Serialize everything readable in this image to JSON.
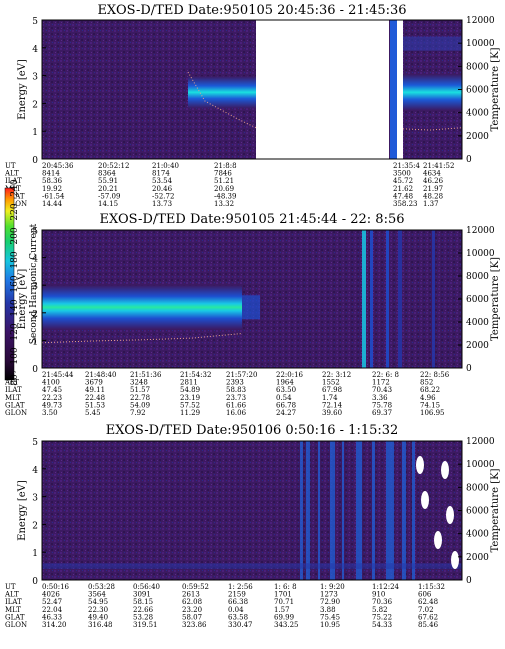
{
  "colorbar": {
    "label": "Second Harmonic Current",
    "ticks": [
      "80",
      "100",
      "120",
      "140",
      "160",
      "180",
      "200",
      "220",
      "240"
    ]
  },
  "chart_data": [
    {
      "type": "heatmap",
      "title": "EXOS-D/TED   Date:950105  20:45:36 - 21:45:36",
      "ylabel": "Energy [eV]",
      "y2label": "Temperature [K]",
      "ylim": [
        0,
        5
      ],
      "y2lim": [
        0,
        12000
      ],
      "yticks": [
        "0",
        "1",
        "2",
        "3",
        "4",
        "5"
      ],
      "y2ticks": [
        "0",
        "2000",
        "4000",
        "6000",
        "8000",
        "10000",
        "12000"
      ],
      "data_gaps": [
        "21:8:8 - 21:35:4"
      ],
      "band_energy_eV": 2.4,
      "temperature_trace_K": [
        7500,
        5000,
        4200,
        3400,
        2700
      ],
      "table": {
        "row_labels": [
          "UT",
          "ALT",
          "ILAT",
          "MLT",
          "GLAT",
          "GLON"
        ],
        "columns": [
          [
            "20:45:36",
            "8414",
            "58.36",
            "19.92",
            "-61.54",
            "14.44"
          ],
          [
            "20:52:12",
            "8364",
            "55.91",
            "20.21",
            "-57.09",
            "14.15"
          ],
          [
            "21:0:40",
            "8174",
            "53.54",
            "20.46",
            "-52.72",
            "13.73"
          ],
          [
            "21:8:8",
            "7846",
            "51.21",
            "20.69",
            "-48.39",
            "13.32"
          ],
          [
            "21:35:4",
            "3500",
            "45.72",
            "21.62",
            "47.48",
            "358.23"
          ],
          [
            "21:41:52",
            "4634",
            "46.26",
            "21.97",
            "48.28",
            "1.37"
          ]
        ]
      }
    },
    {
      "type": "heatmap",
      "title": "EXOS-D/TED   Date:950105  21:45:44 - 22: 8:56",
      "ylabel": "Energy [eV]",
      "y2label": "Temperature [K]",
      "ylim": [
        0,
        5
      ],
      "y2lim": [
        0,
        12000
      ],
      "yticks": [
        "0",
        "1",
        "2",
        "3",
        "4",
        "5"
      ],
      "y2ticks": [
        "0",
        "2000",
        "4000",
        "6000",
        "8000",
        "10000",
        "12000"
      ],
      "band_energy_eV": 2.2,
      "temperature_trace_K": [
        2200,
        2350,
        2450,
        2600,
        3000
      ],
      "table": {
        "row_labels": [
          "UT",
          "ALT",
          "ILAT",
          "MLT",
          "GLAT",
          "GLON"
        ],
        "columns": [
          [
            "21:45:44",
            "4100",
            "47.45",
            "22.23",
            "49.73",
            "3.50"
          ],
          [
            "21:48:40",
            "3679",
            "49.11",
            "22.48",
            "51.53",
            "5.45"
          ],
          [
            "21:51:36",
            "3248",
            "51.57",
            "22.78",
            "54.09",
            "7.92"
          ],
          [
            "21:54:32",
            "2811",
            "54.89",
            "23.19",
            "57.52",
            "11.29"
          ],
          [
            "21:57:20",
            "2393",
            "58.83",
            "23.73",
            "61.66",
            "16.06"
          ],
          [
            "22:0:16",
            "1964",
            "63.50",
            "0.54",
            "66.78",
            "24.27"
          ],
          [
            "22: 3:12",
            "1552",
            "67.98",
            "1.74",
            "72.14",
            "39.60"
          ],
          [
            "22: 6: 8",
            "1172",
            "70.43",
            "3.36",
            "75.78",
            "69.37"
          ],
          [
            "22: 8:56",
            "852",
            "68.22",
            "4.96",
            "74.15",
            "106.95"
          ]
        ]
      }
    },
    {
      "type": "heatmap",
      "title": "EXOS-D/TED   Date:950106   0:50:16 - 1:15:32",
      "ylabel": "Energy [eV]",
      "y2label": "Temperature [K]",
      "ylim": [
        0,
        5
      ],
      "y2lim": [
        0,
        12000
      ],
      "yticks": [
        "0",
        "1",
        "2",
        "3",
        "4",
        "5"
      ],
      "y2ticks": [
        "0",
        "2000",
        "4000",
        "6000",
        "8000",
        "10000",
        "12000"
      ],
      "table": {
        "row_labels": [
          "UT",
          "ALT",
          "ILAT",
          "MLT",
          "GLAT",
          "GLON"
        ],
        "columns": [
          [
            "0:50:16",
            "4026",
            "52.47",
            "22.04",
            "46.33",
            "314.20"
          ],
          [
            "0:53:28",
            "3564",
            "54.95",
            "22.30",
            "49.40",
            "316.48"
          ],
          [
            "0:56:40",
            "3091",
            "58.15",
            "22.66",
            "53.28",
            "319.51"
          ],
          [
            "0:59:52",
            "2613",
            "62.08",
            "23.20",
            "58.07",
            "323.86"
          ],
          [
            "1: 2:56",
            "2159",
            "66.38",
            "0.04",
            "63.58",
            "330.47"
          ],
          [
            "1: 6: 8",
            "1701",
            "70.71",
            "1.57",
            "69.99",
            "343.25"
          ],
          [
            "1: 9:20",
            "1273",
            "72.90",
            "3.88",
            "75.45",
            "10.95"
          ],
          [
            "1:12:24",
            "910",
            "70.36",
            "5.82",
            "75.22",
            "54.33"
          ],
          [
            "1:15:32",
            "606",
            "62.48",
            "7.02",
            "67.62",
            "85.46"
          ]
        ]
      }
    }
  ]
}
